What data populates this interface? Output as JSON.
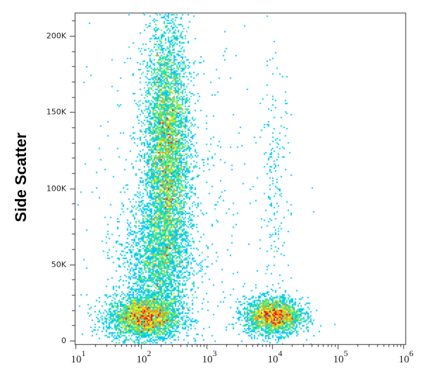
{
  "chart_data": {
    "type": "scatter",
    "subtype": "flow-cytometry-density-dot-plot",
    "title": "",
    "xlabel": "",
    "ylabel": "Side Scatter",
    "x_scale": "log",
    "xlim": [
      10,
      1000000
    ],
    "ylim": [
      0,
      215000
    ],
    "x_ticks": [
      {
        "base": "10",
        "exp": "1",
        "value": 10
      },
      {
        "base": "10",
        "exp": "2",
        "value": 100
      },
      {
        "base": "10",
        "exp": "3",
        "value": 1000
      },
      {
        "base": "10",
        "exp": "4",
        "value": 10000
      },
      {
        "base": "10",
        "exp": "5",
        "value": 100000
      },
      {
        "base": "10",
        "exp": "6",
        "value": 1000000
      }
    ],
    "y_ticks": [
      {
        "label": "0",
        "value": 0
      },
      {
        "label": "50K",
        "value": 50000
      },
      {
        "label": "100K",
        "value": 100000
      },
      {
        "label": "150K",
        "value": 150000
      },
      {
        "label": "200K",
        "value": 200000
      }
    ],
    "grid": false,
    "legend": null,
    "colormap": [
      "#0a14c8",
      "#1e50ff",
      "#00c8ff",
      "#32e6a0",
      "#8cf03c",
      "#f0f028",
      "#ff9614",
      "#f01414"
    ],
    "populations": [
      {
        "name": "lymphocyte-like cluster (low x, low SSC)",
        "x_center": 110,
        "y_center": 15000,
        "x_spread_decades": 0.28,
        "y_spread": 7000,
        "count": 3200,
        "peak_density": "high"
      },
      {
        "name": "granulocyte-like cluster (tall streak)",
        "x_center": 250,
        "y_center": 125000,
        "x_spread_decades": 0.17,
        "y_spread": 42000,
        "count": 6500,
        "peak_density": "high"
      },
      {
        "name": "bridge between clusters",
        "x_center": 180,
        "y_center": 50000,
        "x_spread_decades": 0.25,
        "y_spread": 22000,
        "count": 2300,
        "peak_density": "low"
      },
      {
        "name": "high-fluorescence cluster (low SSC)",
        "x_center": 10500,
        "y_center": 16000,
        "x_spread_decades": 0.22,
        "y_spread": 6000,
        "count": 2600,
        "peak_density": "high"
      },
      {
        "name": "sparse high-fluorescence streak",
        "x_center": 11000,
        "y_center": 95000,
        "x_spread_decades": 0.12,
        "y_spread": 45000,
        "count": 220,
        "peak_density": "very low"
      },
      {
        "name": "background scatter",
        "x_center": 300,
        "y_center": 80000,
        "x_spread_decades": 0.6,
        "y_spread": 60000,
        "count": 700,
        "peak_density": "very low"
      }
    ]
  },
  "axes": {
    "ylabel": "Side Scatter",
    "xlabel_partial": ""
  }
}
